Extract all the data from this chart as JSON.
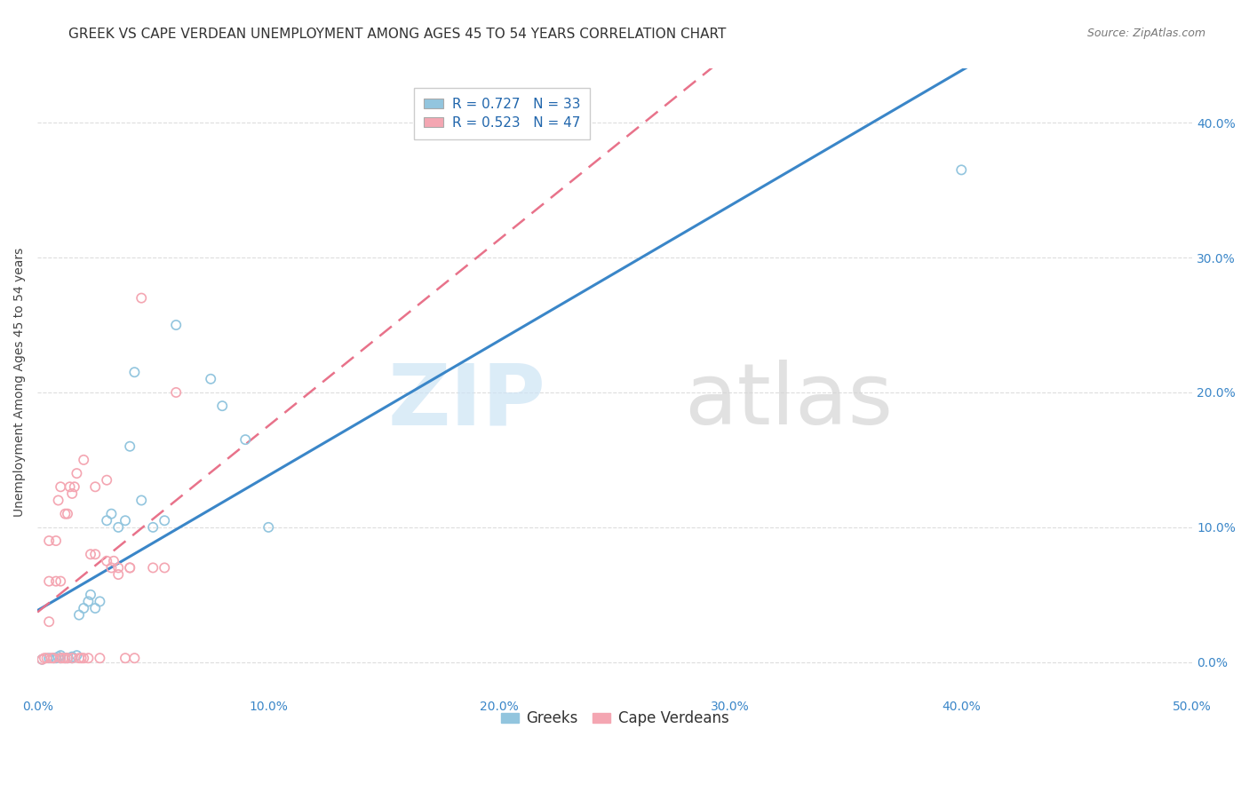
{
  "title": "GREEK VS CAPE VERDEAN UNEMPLOYMENT AMONG AGES 45 TO 54 YEARS CORRELATION CHART",
  "source": "Source: ZipAtlas.com",
  "ylabel": "Unemployment Among Ages 45 to 54 years",
  "xlim": [
    0.0,
    0.5
  ],
  "ylim": [
    -0.025,
    0.44
  ],
  "xticks": [
    0.0,
    0.1,
    0.2,
    0.3,
    0.4,
    0.5
  ],
  "xticklabels": [
    "0.0%",
    "10.0%",
    "20.0%",
    "30.0%",
    "40.0%",
    "50.0%"
  ],
  "yticks": [
    0.0,
    0.1,
    0.2,
    0.3,
    0.4
  ],
  "yticklabels": [
    "0.0%",
    "10.0%",
    "20.0%",
    "30.0%",
    "40.0%"
  ],
  "greek_color": "#92c5de",
  "cape_verdean_color": "#f4a6b2",
  "greek_line_color": "#3a86c8",
  "cape_verdean_line_color": "#e8728a",
  "background_color": "#ffffff",
  "legend_R_greek": "0.727",
  "legend_N_greek": "33",
  "legend_R_cv": "0.523",
  "legend_N_cv": "47",
  "greeks_x": [
    0.002,
    0.005,
    0.007,
    0.008,
    0.009,
    0.01,
    0.01,
    0.012,
    0.013,
    0.015,
    0.015,
    0.017,
    0.018,
    0.02,
    0.022,
    0.023,
    0.025,
    0.027,
    0.03,
    0.032,
    0.035,
    0.038,
    0.04,
    0.042,
    0.045,
    0.05,
    0.055,
    0.06,
    0.075,
    0.08,
    0.09,
    0.1,
    0.4
  ],
  "greeks_y": [
    0.002,
    0.003,
    0.003,
    0.003,
    0.004,
    0.003,
    0.005,
    0.003,
    0.003,
    0.003,
    0.004,
    0.005,
    0.035,
    0.04,
    0.045,
    0.05,
    0.04,
    0.045,
    0.105,
    0.11,
    0.1,
    0.105,
    0.16,
    0.215,
    0.12,
    0.1,
    0.105,
    0.25,
    0.21,
    0.19,
    0.165,
    0.1,
    0.365
  ],
  "cape_verdeans_x": [
    0.002,
    0.003,
    0.004,
    0.005,
    0.005,
    0.005,
    0.006,
    0.007,
    0.008,
    0.008,
    0.009,
    0.01,
    0.01,
    0.01,
    0.011,
    0.012,
    0.012,
    0.013,
    0.013,
    0.014,
    0.015,
    0.015,
    0.016,
    0.017,
    0.018,
    0.019,
    0.02,
    0.02,
    0.022,
    0.023,
    0.025,
    0.025,
    0.027,
    0.03,
    0.03,
    0.032,
    0.033,
    0.035,
    0.035,
    0.038,
    0.04,
    0.04,
    0.042,
    0.045,
    0.05,
    0.055,
    0.06
  ],
  "cape_verdeans_y": [
    0.002,
    0.003,
    0.003,
    0.03,
    0.06,
    0.09,
    0.003,
    0.003,
    0.06,
    0.09,
    0.12,
    0.003,
    0.06,
    0.13,
    0.003,
    0.003,
    0.11,
    0.003,
    0.11,
    0.13,
    0.003,
    0.125,
    0.13,
    0.14,
    0.003,
    0.003,
    0.003,
    0.15,
    0.003,
    0.08,
    0.08,
    0.13,
    0.003,
    0.075,
    0.135,
    0.07,
    0.075,
    0.065,
    0.07,
    0.003,
    0.07,
    0.07,
    0.003,
    0.27,
    0.07,
    0.07,
    0.2
  ],
  "title_fontsize": 11,
  "axis_label_fontsize": 10,
  "tick_fontsize": 10,
  "legend_fontsize": 11
}
